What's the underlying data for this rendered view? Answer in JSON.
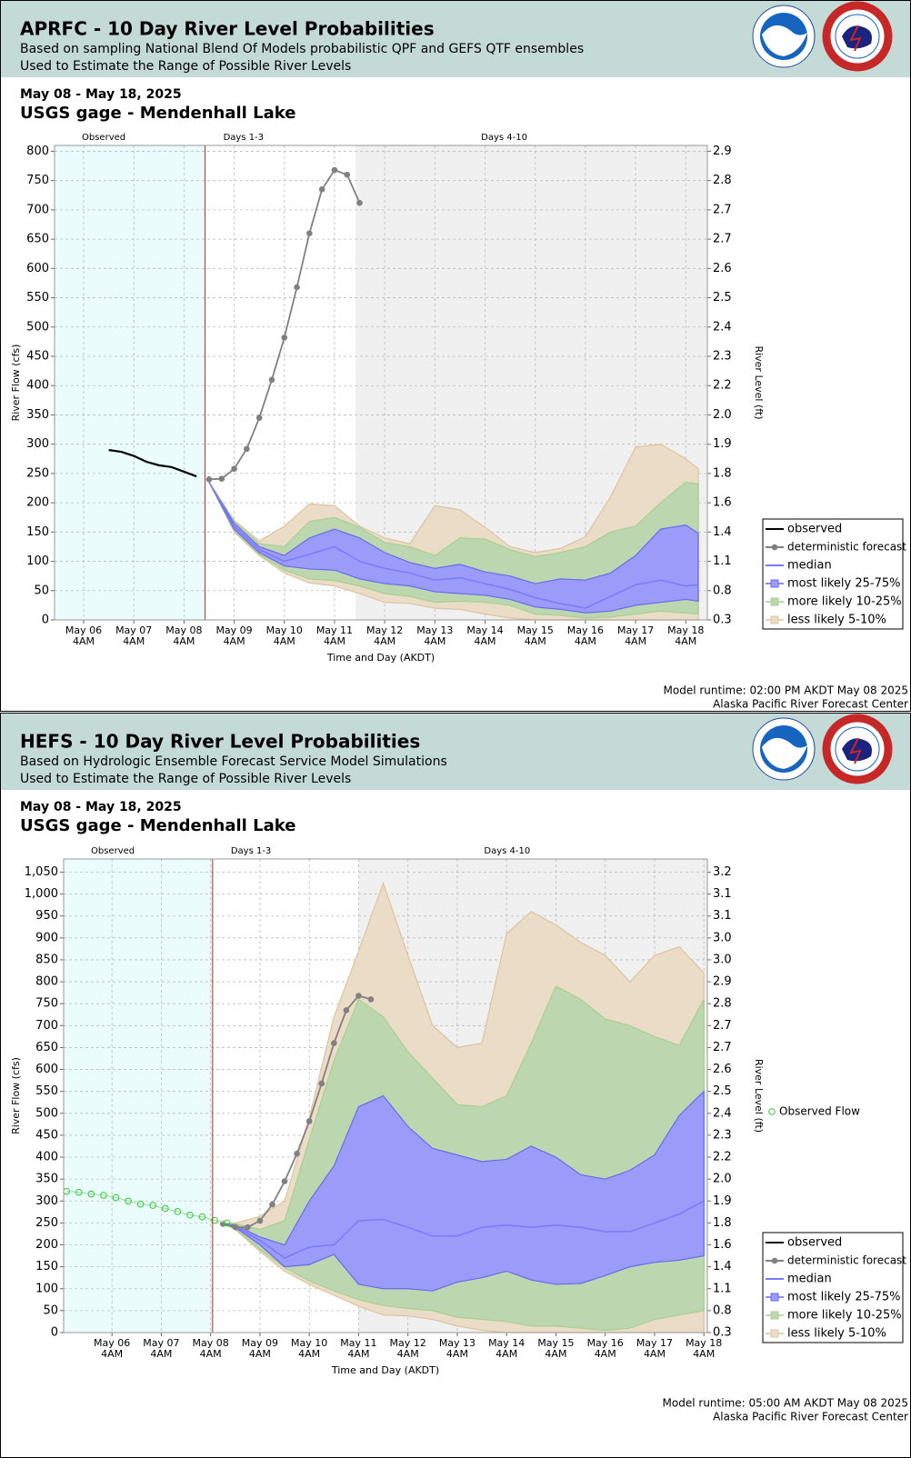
{
  "chart_data": [
    {
      "type": "band-line",
      "title": "APRFC - 10 Day River Level Probabilities",
      "subtitle": "Based on sampling National Blend Of Models probabilistic QPF and GEFS QTF ensembles",
      "subtitle2": "Used to Estimate the Range of Possible River Levels",
      "date_range": "May 08 - May 18, 2025",
      "gage": "USGS gage - Mendenhall Lake",
      "section_labels": [
        "Observed",
        "Days 1-3",
        "Days 4-10"
      ],
      "forecast_start": 8.42,
      "days4_start": 11.42,
      "ylabel": "River Flow (cfs)",
      "y2label": "River Level (ft)",
      "xlabel": "Time and Day (AKDT)",
      "xlim": [
        5.42,
        18.43
      ],
      "ylim": [
        0,
        810
      ],
      "xticks": [
        {
          "value": 6,
          "label": "May 06",
          "sublabel": "4AM"
        },
        {
          "value": 7,
          "label": "May 07",
          "sublabel": "4AM"
        },
        {
          "value": 8,
          "label": "May 08",
          "sublabel": "4AM"
        },
        {
          "value": 9,
          "label": "May 09",
          "sublabel": "4AM"
        },
        {
          "value": 10,
          "label": "May 10",
          "sublabel": "4AM"
        },
        {
          "value": 11,
          "label": "May 11",
          "sublabel": "4AM"
        },
        {
          "value": 12,
          "label": "May 12",
          "sublabel": "4AM"
        },
        {
          "value": 13,
          "label": "May 13",
          "sublabel": "4AM"
        },
        {
          "value": 14,
          "label": "May 14",
          "sublabel": "4AM"
        },
        {
          "value": 15,
          "label": "May 15",
          "sublabel": "4AM"
        },
        {
          "value": 16,
          "label": "May 16",
          "sublabel": "4AM"
        },
        {
          "value": 17,
          "label": "May 17",
          "sublabel": "4AM"
        },
        {
          "value": 18,
          "label": "May 18",
          "sublabel": "4AM"
        }
      ],
      "yticks": [
        0,
        50,
        100,
        150,
        200,
        250,
        300,
        350,
        400,
        450,
        500,
        550,
        600,
        650,
        700,
        750,
        800
      ],
      "y2_labels": [
        "0.3",
        "0.8",
        "1.1",
        "1.4",
        "1.6",
        "1.8",
        "1.9",
        "2.0",
        "2.2",
        "2.3",
        "2.4",
        "2.5",
        "2.6",
        "2.7",
        "2.7",
        "2.8",
        "2.9"
      ],
      "grid": true,
      "band_x": [
        8.5,
        9,
        9.5,
        10,
        10.5,
        11,
        11.5,
        12,
        12.5,
        13,
        13.5,
        14,
        14.5,
        15,
        15.5,
        16,
        16.5,
        17,
        17.5,
        18,
        18.25
      ],
      "series": [
        {
          "name": "observed",
          "kind": "line",
          "color": "#000000",
          "x": [
            6.5,
            6.75,
            7,
            7.25,
            7.5,
            7.75,
            8,
            8.25
          ],
          "values": [
            290,
            287,
            280,
            270,
            264,
            261,
            253,
            245
          ]
        },
        {
          "name": "deterministic forecast",
          "kind": "points-line",
          "color": "#808080",
          "x": [
            8.5,
            8.75,
            9,
            9.25,
            9.5,
            9.75,
            10,
            10.25,
            10.5,
            10.75,
            11,
            11.25,
            11.5
          ],
          "values": [
            240,
            241,
            258,
            292,
            345,
            410,
            482,
            568,
            660,
            735,
            768,
            760,
            712
          ]
        },
        {
          "name": "median",
          "kind": "median",
          "color": "#7a7aff",
          "values": [
            235,
            160,
            120,
            100,
            112,
            125,
            100,
            88,
            80,
            68,
            72,
            62,
            52,
            38,
            28,
            20,
            40,
            60,
            68,
            58,
            60
          ]
        },
        {
          "name": "most likely 25-75%",
          "kind": "band",
          "color": "#9b9bfa",
          "stroke": "#6a6aee",
          "lower": [
            235,
            155,
            115,
            92,
            87,
            85,
            70,
            62,
            58,
            48,
            45,
            42,
            35,
            22,
            18,
            12,
            15,
            25,
            30,
            35,
            32
          ],
          "upper": [
            235,
            165,
            125,
            110,
            140,
            155,
            140,
            115,
            98,
            88,
            95,
            82,
            75,
            62,
            70,
            68,
            80,
            110,
            155,
            162,
            148
          ]
        },
        {
          "name": "more likely 10-25%",
          "kind": "band",
          "color": "#bcd7b0",
          "stroke": "#a6d08f",
          "lower": [
            235,
            152,
            112,
            85,
            70,
            67,
            58,
            45,
            40,
            30,
            32,
            30,
            25,
            10,
            8,
            3,
            5,
            10,
            15,
            12,
            10
          ],
          "upper": [
            235,
            168,
            130,
            125,
            168,
            175,
            158,
            132,
            125,
            110,
            140,
            138,
            120,
            108,
            115,
            125,
            150,
            160,
            200,
            235,
            232
          ]
        },
        {
          "name": "less likely 5-10%",
          "kind": "band",
          "color": "#eadcc6",
          "stroke": "#dcc4a0",
          "lower": [
            235,
            150,
            110,
            80,
            63,
            58,
            45,
            30,
            28,
            20,
            18,
            10,
            3,
            0,
            0,
            0,
            0,
            0,
            0,
            0,
            0
          ],
          "upper": [
            235,
            170,
            135,
            160,
            198,
            195,
            160,
            140,
            130,
            195,
            188,
            158,
            125,
            115,
            122,
            142,
            210,
            295,
            300,
            275,
            258
          ]
        }
      ],
      "runtime": "Model runtime: 02:00 PM AKDT May 08 2025",
      "center": "Alaska Pacific River Forecast Center"
    },
    {
      "type": "band-line",
      "title": "HEFS - 10 Day River Level Probabilities",
      "subtitle": "Based on Hydrologic Ensemble Forecast Service Model Simulations",
      "subtitle2": "Used to Estimate the Range of Possible River Levels",
      "date_range": "May 08 - May 18, 2025",
      "gage": "USGS gage - Mendenhall Lake",
      "section_labels": [
        "Observed",
        "Days 1-3",
        "Days 4-10"
      ],
      "forecast_start": 8.04,
      "days4_start": 11.0,
      "ylabel": "River Flow (cfs)",
      "y2label": "River Level (ft)",
      "xlabel": "Time and Day (AKDT)",
      "xlim": [
        5.02,
        18.07
      ],
      "ylim": [
        0,
        1080
      ],
      "xticks": [
        {
          "value": 6,
          "label": "May 06",
          "sublabel": "4AM"
        },
        {
          "value": 7,
          "label": "May 07",
          "sublabel": "4AM"
        },
        {
          "value": 8,
          "label": "May 08",
          "sublabel": "4AM"
        },
        {
          "value": 9,
          "label": "May 09",
          "sublabel": "4AM"
        },
        {
          "value": 10,
          "label": "May 10",
          "sublabel": "4AM"
        },
        {
          "value": 11,
          "label": "May 11",
          "sublabel": "4AM"
        },
        {
          "value": 12,
          "label": "May 12",
          "sublabel": "4AM"
        },
        {
          "value": 13,
          "label": "May 13",
          "sublabel": "4AM"
        },
        {
          "value": 14,
          "label": "May 14",
          "sublabel": "4AM"
        },
        {
          "value": 15,
          "label": "May 15",
          "sublabel": "4AM"
        },
        {
          "value": 16,
          "label": "May 16",
          "sublabel": "4AM"
        },
        {
          "value": 17,
          "label": "May 17",
          "sublabel": "4AM"
        },
        {
          "value": 18,
          "label": "May 18",
          "sublabel": "4AM"
        }
      ],
      "yticks": [
        0,
        50,
        100,
        150,
        200,
        250,
        300,
        350,
        400,
        450,
        500,
        550,
        600,
        650,
        700,
        750,
        800,
        850,
        900,
        950,
        {
          "value": 1000,
          "label": "1,000"
        },
        {
          "value": 1050,
          "label": "1,050"
        }
      ],
      "y2_labels": [
        "0.3",
        "0.8",
        "1.1",
        "1.4",
        "1.6",
        "1.8",
        "1.9",
        "2.0",
        "2.2",
        "2.3",
        "2.4",
        "2.5",
        "2.6",
        "2.7",
        "2.7",
        "2.8",
        "2.9",
        "3.0",
        "3.0",
        "3.1",
        "3.1",
        "3.2"
      ],
      "grid": true,
      "band_x": [
        8.25,
        8.5,
        9,
        9.5,
        10,
        10.5,
        11,
        11.5,
        12,
        12.5,
        13,
        13.5,
        14,
        14.5,
        15,
        15.5,
        16,
        16.5,
        17,
        17.5,
        18
      ],
      "series": [
        {
          "name": "observed",
          "kind": "line",
          "color": "#000000",
          "x": [],
          "values": []
        },
        {
          "name": "deterministic forecast",
          "kind": "points-line",
          "color": "#808080",
          "x": [
            8.25,
            8.5,
            8.75,
            9,
            9.25,
            9.5,
            9.75,
            10,
            10.25,
            10.5,
            10.75,
            11,
            11.25
          ],
          "values": [
            248,
            240,
            240,
            255,
            292,
            345,
            408,
            482,
            568,
            660,
            735,
            768,
            760
          ]
        },
        {
          "name": "median",
          "kind": "median",
          "color": "#7a7aff",
          "values": [
            248,
            242,
            210,
            170,
            195,
            200,
            255,
            258,
            240,
            220,
            220,
            240,
            245,
            240,
            245,
            240,
            230,
            230,
            250,
            270,
            300
          ]
        },
        {
          "name": "most likely 25-75%",
          "kind": "band",
          "color": "#9b9bfa",
          "stroke": "#6a6aee",
          "lower": [
            248,
            240,
            200,
            150,
            155,
            178,
            110,
            100,
            100,
            95,
            115,
            125,
            140,
            120,
            110,
            112,
            130,
            150,
            160,
            165,
            175
          ],
          "upper": [
            248,
            245,
            218,
            200,
            300,
            380,
            515,
            540,
            470,
            420,
            405,
            390,
            395,
            425,
            400,
            360,
            350,
            370,
            405,
            495,
            550
          ]
        },
        {
          "name": "more likely 10-25%",
          "kind": "band",
          "color": "#bcd7b0",
          "stroke": "#a6d08f",
          "lower": [
            248,
            237,
            190,
            148,
            118,
            95,
            75,
            62,
            55,
            50,
            35,
            30,
            25,
            15,
            15,
            10,
            5,
            10,
            30,
            40,
            50
          ],
          "upper": [
            248,
            248,
            235,
            255,
            440,
            620,
            760,
            720,
            640,
            580,
            520,
            515,
            540,
            660,
            790,
            760,
            715,
            700,
            675,
            655,
            760
          ]
        },
        {
          "name": "less likely 5-10%",
          "kind": "band",
          "color": "#eadcc6",
          "stroke": "#dcc4a0",
          "lower": [
            248,
            235,
            185,
            140,
            110,
            85,
            60,
            40,
            38,
            30,
            15,
            5,
            0,
            0,
            0,
            0,
            0,
            0,
            0,
            0,
            0
          ],
          "upper": [
            248,
            250,
            265,
            300,
            490,
            720,
            870,
            1025,
            860,
            700,
            650,
            660,
            910,
            960,
            930,
            890,
            860,
            800,
            860,
            880,
            820
          ]
        }
      ],
      "observed_flow": {
        "name": "Observed Flow",
        "color": "#33cc33",
        "x": [
          5.08,
          5.33,
          5.58,
          5.83,
          6.08,
          6.33,
          6.58,
          6.83,
          7.08,
          7.33,
          7.58,
          7.83,
          8.08,
          8.33
        ],
        "values": [
          322,
          320,
          316,
          313,
          308,
          300,
          293,
          290,
          283,
          276,
          268,
          264,
          256,
          250
        ]
      },
      "runtime": "Model runtime: 05:00 AM AKDT May 08 2025",
      "center": "Alaska Pacific River Forecast Center"
    }
  ]
}
